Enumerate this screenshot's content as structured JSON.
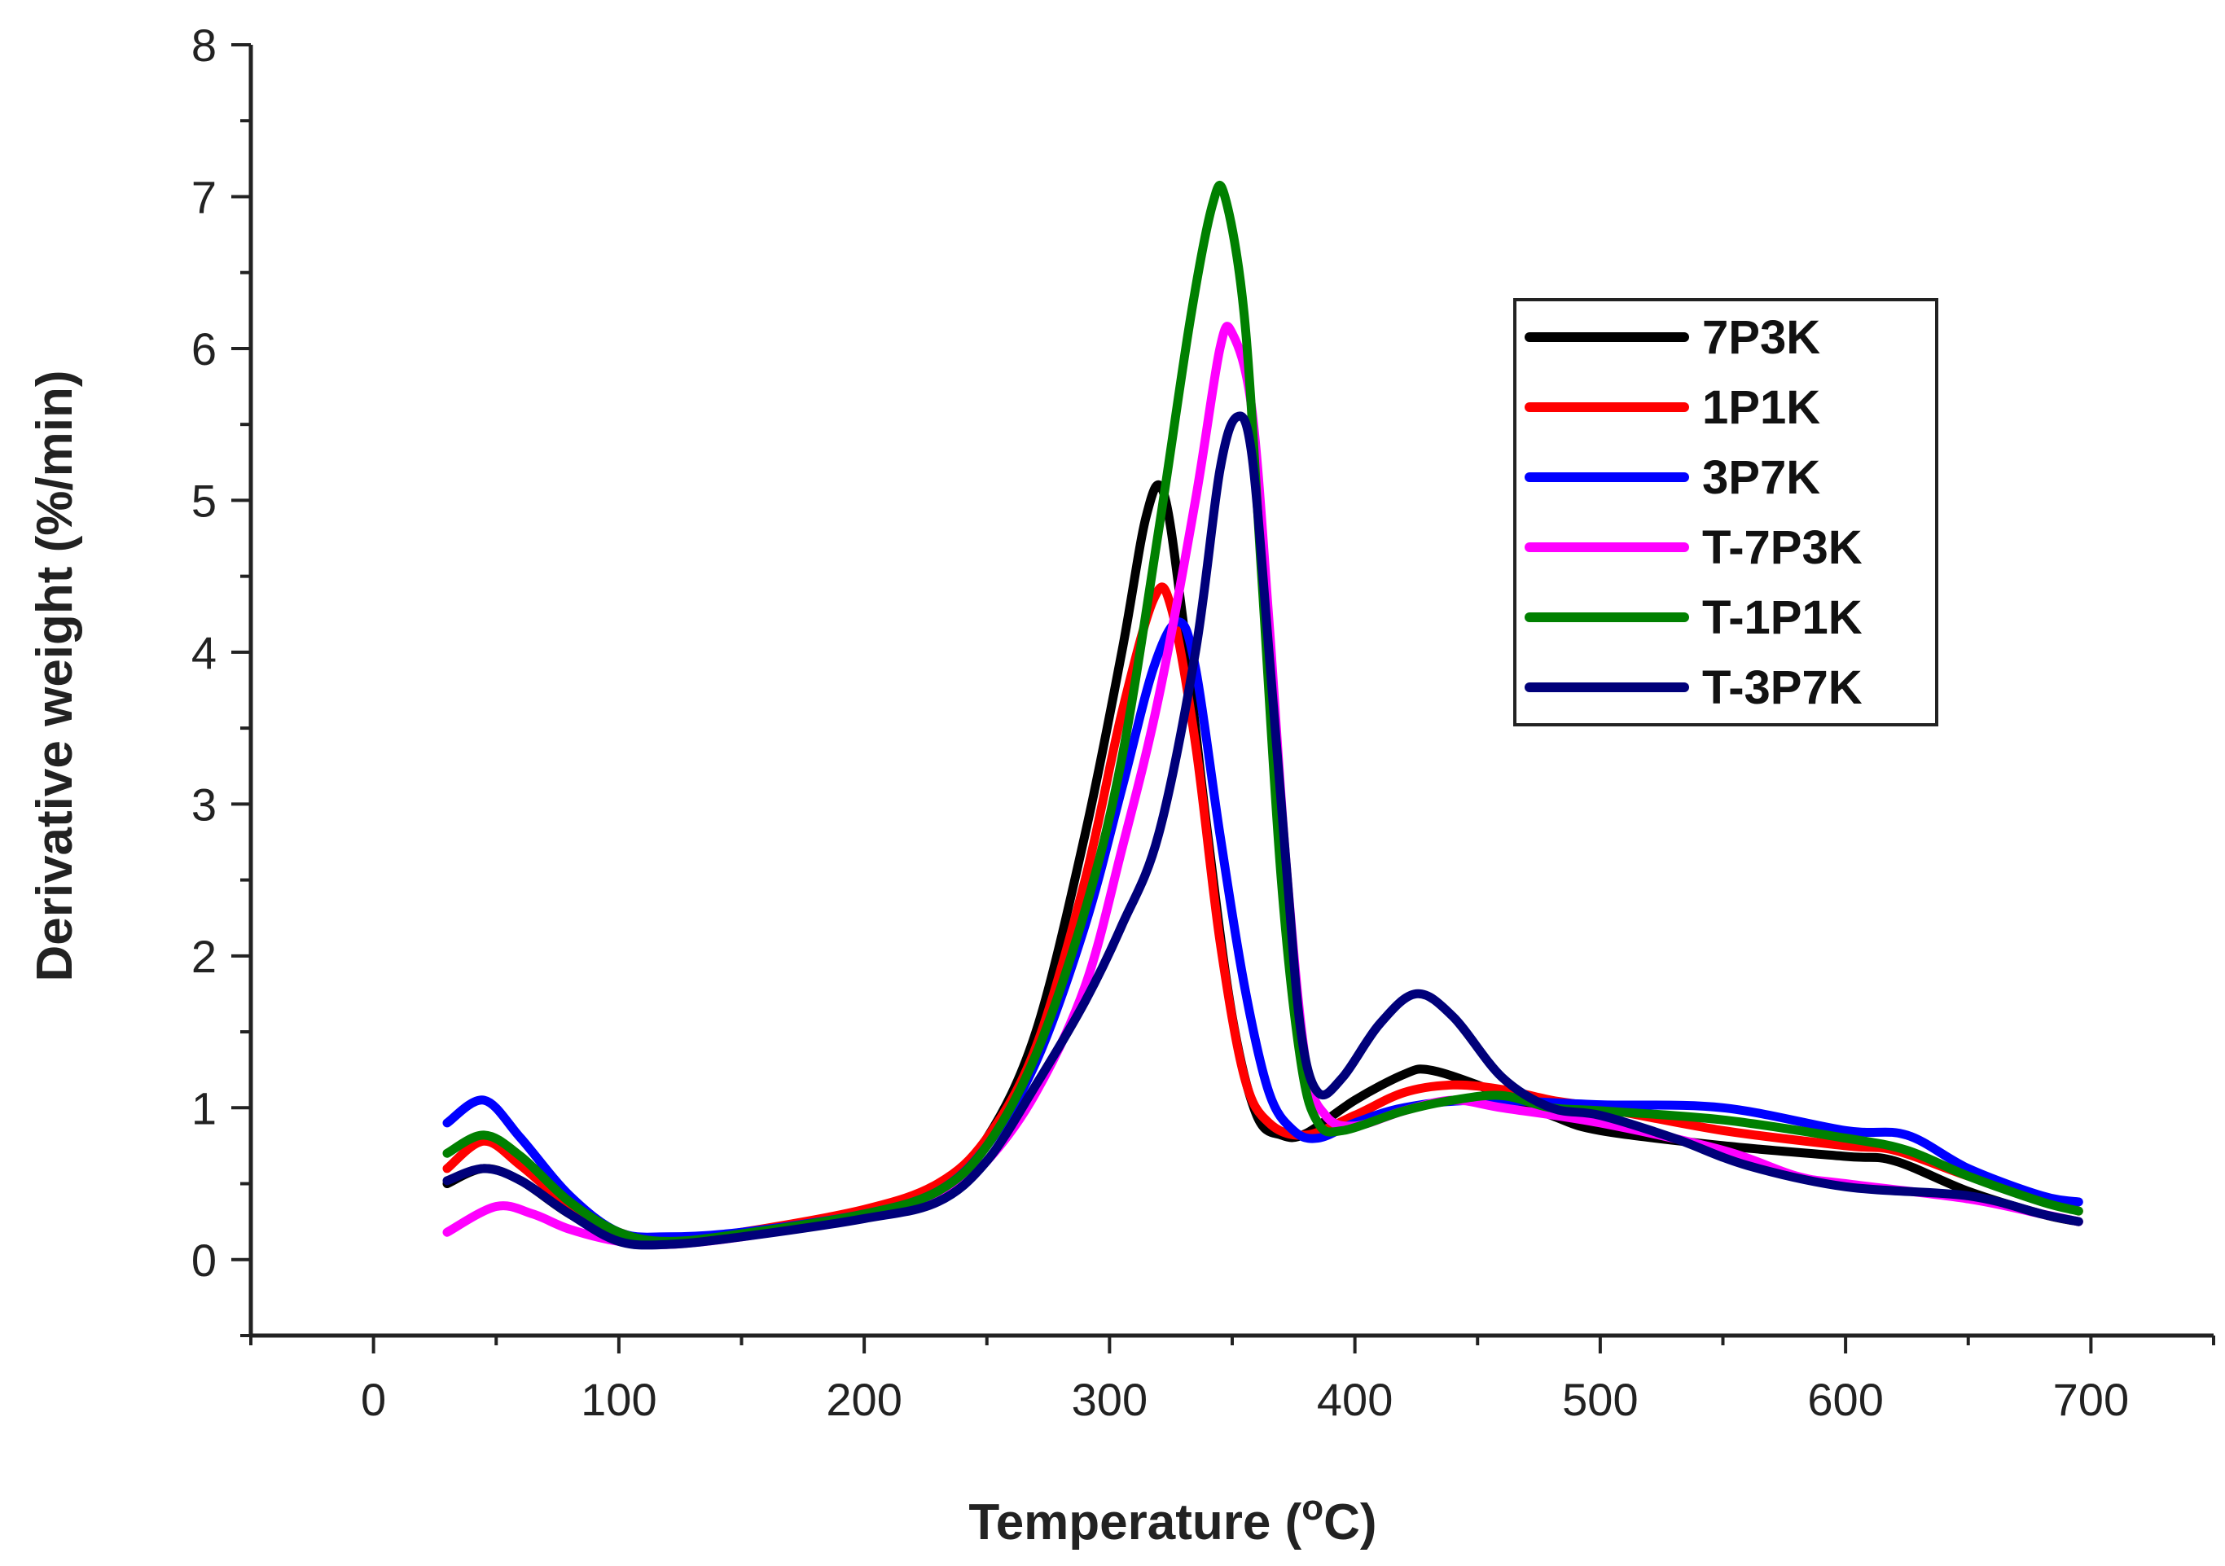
{
  "chart_data": {
    "type": "line",
    "title": "",
    "xlabel": "Temperature (",
    "xlabel_sup": "o",
    "xlabel_unit": "C)",
    "ylabel": "Derivative weight (%/min)",
    "xlim": [
      -50,
      750
    ],
    "ylim": [
      -0.5,
      8
    ],
    "xticks": [
      "0",
      "100",
      "200",
      "300",
      "400",
      "500",
      "600",
      "700"
    ],
    "yticks": [
      "0",
      "1",
      "2",
      "3",
      "4",
      "5",
      "6",
      "7",
      "8"
    ],
    "grid": false,
    "legend_position": "top-right",
    "series": [
      {
        "name": "7P3K",
        "color": "#000000",
        "points": [
          [
            30,
            0.5
          ],
          [
            45,
            0.6
          ],
          [
            60,
            0.52
          ],
          [
            80,
            0.3
          ],
          [
            100,
            0.15
          ],
          [
            120,
            0.12
          ],
          [
            150,
            0.17
          ],
          [
            200,
            0.3
          ],
          [
            230,
            0.48
          ],
          [
            250,
            0.8
          ],
          [
            270,
            1.5
          ],
          [
            290,
            2.8
          ],
          [
            305,
            4.0
          ],
          [
            315,
            4.9
          ],
          [
            322,
            5.05
          ],
          [
            330,
            4.2
          ],
          [
            340,
            2.8
          ],
          [
            350,
            1.6
          ],
          [
            360,
            0.95
          ],
          [
            370,
            0.82
          ],
          [
            380,
            0.83
          ],
          [
            400,
            1.05
          ],
          [
            420,
            1.22
          ],
          [
            430,
            1.25
          ],
          [
            450,
            1.15
          ],
          [
            480,
            0.95
          ],
          [
            500,
            0.85
          ],
          [
            550,
            0.75
          ],
          [
            600,
            0.68
          ],
          [
            620,
            0.65
          ],
          [
            650,
            0.45
          ],
          [
            680,
            0.3
          ],
          [
            695,
            0.25
          ]
        ]
      },
      {
        "name": "1P1K",
        "color": "#ff0000",
        "points": [
          [
            30,
            0.6
          ],
          [
            45,
            0.78
          ],
          [
            60,
            0.62
          ],
          [
            80,
            0.35
          ],
          [
            100,
            0.18
          ],
          [
            120,
            0.12
          ],
          [
            150,
            0.18
          ],
          [
            200,
            0.33
          ],
          [
            230,
            0.5
          ],
          [
            250,
            0.8
          ],
          [
            270,
            1.4
          ],
          [
            290,
            2.5
          ],
          [
            305,
            3.6
          ],
          [
            318,
            4.35
          ],
          [
            325,
            4.3
          ],
          [
            335,
            3.4
          ],
          [
            345,
            2.1
          ],
          [
            355,
            1.2
          ],
          [
            365,
            0.9
          ],
          [
            380,
            0.82
          ],
          [
            400,
            0.95
          ],
          [
            420,
            1.1
          ],
          [
            440,
            1.15
          ],
          [
            460,
            1.12
          ],
          [
            480,
            1.05
          ],
          [
            500,
            1.0
          ],
          [
            550,
            0.85
          ],
          [
            600,
            0.75
          ],
          [
            620,
            0.72
          ],
          [
            650,
            0.55
          ],
          [
            680,
            0.4
          ],
          [
            695,
            0.32
          ]
        ]
      },
      {
        "name": "3P7K",
        "color": "#0000ff",
        "points": [
          [
            30,
            0.9
          ],
          [
            45,
            1.05
          ],
          [
            60,
            0.8
          ],
          [
            80,
            0.42
          ],
          [
            100,
            0.18
          ],
          [
            120,
            0.15
          ],
          [
            150,
            0.18
          ],
          [
            200,
            0.3
          ],
          [
            230,
            0.45
          ],
          [
            250,
            0.75
          ],
          [
            270,
            1.3
          ],
          [
            290,
            2.2
          ],
          [
            305,
            3.1
          ],
          [
            318,
            3.9
          ],
          [
            328,
            4.2
          ],
          [
            335,
            3.9
          ],
          [
            345,
            2.8
          ],
          [
            355,
            1.8
          ],
          [
            365,
            1.1
          ],
          [
            375,
            0.85
          ],
          [
            385,
            0.8
          ],
          [
            400,
            0.9
          ],
          [
            420,
            1.0
          ],
          [
            450,
            1.05
          ],
          [
            500,
            1.02
          ],
          [
            550,
            1.0
          ],
          [
            600,
            0.85
          ],
          [
            625,
            0.82
          ],
          [
            650,
            0.6
          ],
          [
            680,
            0.42
          ],
          [
            695,
            0.38
          ]
        ]
      },
      {
        "name": "T-7P3K",
        "color": "#ff00ff",
        "points": [
          [
            30,
            0.18
          ],
          [
            50,
            0.35
          ],
          [
            65,
            0.3
          ],
          [
            80,
            0.2
          ],
          [
            100,
            0.12
          ],
          [
            120,
            0.1
          ],
          [
            150,
            0.15
          ],
          [
            200,
            0.28
          ],
          [
            230,
            0.4
          ],
          [
            250,
            0.65
          ],
          [
            270,
            1.1
          ],
          [
            290,
            1.8
          ],
          [
            305,
            2.7
          ],
          [
            320,
            3.7
          ],
          [
            335,
            5.0
          ],
          [
            345,
            6.0
          ],
          [
            350,
            6.1
          ],
          [
            358,
            5.6
          ],
          [
            365,
            4.2
          ],
          [
            372,
            2.6
          ],
          [
            380,
            1.3
          ],
          [
            388,
            0.95
          ],
          [
            400,
            0.88
          ],
          [
            420,
            0.98
          ],
          [
            440,
            1.05
          ],
          [
            460,
            1.0
          ],
          [
            500,
            0.9
          ],
          [
            550,
            0.72
          ],
          [
            580,
            0.55
          ],
          [
            600,
            0.5
          ],
          [
            650,
            0.4
          ],
          [
            680,
            0.3
          ],
          [
            695,
            0.25
          ]
        ]
      },
      {
        "name": "T-1P1K",
        "color": "#008000",
        "points": [
          [
            30,
            0.7
          ],
          [
            45,
            0.82
          ],
          [
            60,
            0.68
          ],
          [
            80,
            0.38
          ],
          [
            100,
            0.18
          ],
          [
            120,
            0.12
          ],
          [
            150,
            0.17
          ],
          [
            200,
            0.3
          ],
          [
            230,
            0.45
          ],
          [
            250,
            0.75
          ],
          [
            270,
            1.35
          ],
          [
            290,
            2.3
          ],
          [
            305,
            3.3
          ],
          [
            320,
            4.8
          ],
          [
            333,
            6.2
          ],
          [
            342,
            6.95
          ],
          [
            347,
            7.0
          ],
          [
            355,
            6.2
          ],
          [
            362,
            4.5
          ],
          [
            370,
            2.5
          ],
          [
            378,
            1.3
          ],
          [
            385,
            0.9
          ],
          [
            395,
            0.85
          ],
          [
            420,
            0.98
          ],
          [
            440,
            1.05
          ],
          [
            460,
            1.08
          ],
          [
            480,
            1.0
          ],
          [
            500,
            0.98
          ],
          [
            550,
            0.92
          ],
          [
            600,
            0.8
          ],
          [
            625,
            0.72
          ],
          [
            650,
            0.55
          ],
          [
            680,
            0.38
          ],
          [
            695,
            0.32
          ]
        ]
      },
      {
        "name": "T-3P7K",
        "color": "#00007a",
        "points": [
          [
            30,
            0.52
          ],
          [
            45,
            0.6
          ],
          [
            60,
            0.52
          ],
          [
            80,
            0.3
          ],
          [
            100,
            0.12
          ],
          [
            120,
            0.1
          ],
          [
            150,
            0.15
          ],
          [
            200,
            0.27
          ],
          [
            230,
            0.38
          ],
          [
            250,
            0.65
          ],
          [
            270,
            1.15
          ],
          [
            290,
            1.7
          ],
          [
            305,
            2.2
          ],
          [
            320,
            2.8
          ],
          [
            335,
            4.0
          ],
          [
            345,
            5.2
          ],
          [
            352,
            5.55
          ],
          [
            358,
            5.3
          ],
          [
            365,
            4.0
          ],
          [
            372,
            2.6
          ],
          [
            378,
            1.5
          ],
          [
            385,
            1.1
          ],
          [
            395,
            1.2
          ],
          [
            410,
            1.55
          ],
          [
            425,
            1.75
          ],
          [
            440,
            1.6
          ],
          [
            460,
            1.2
          ],
          [
            480,
            1.0
          ],
          [
            500,
            0.95
          ],
          [
            530,
            0.8
          ],
          [
            560,
            0.62
          ],
          [
            600,
            0.48
          ],
          [
            650,
            0.42
          ],
          [
            680,
            0.3
          ],
          [
            695,
            0.25
          ]
        ]
      }
    ]
  }
}
